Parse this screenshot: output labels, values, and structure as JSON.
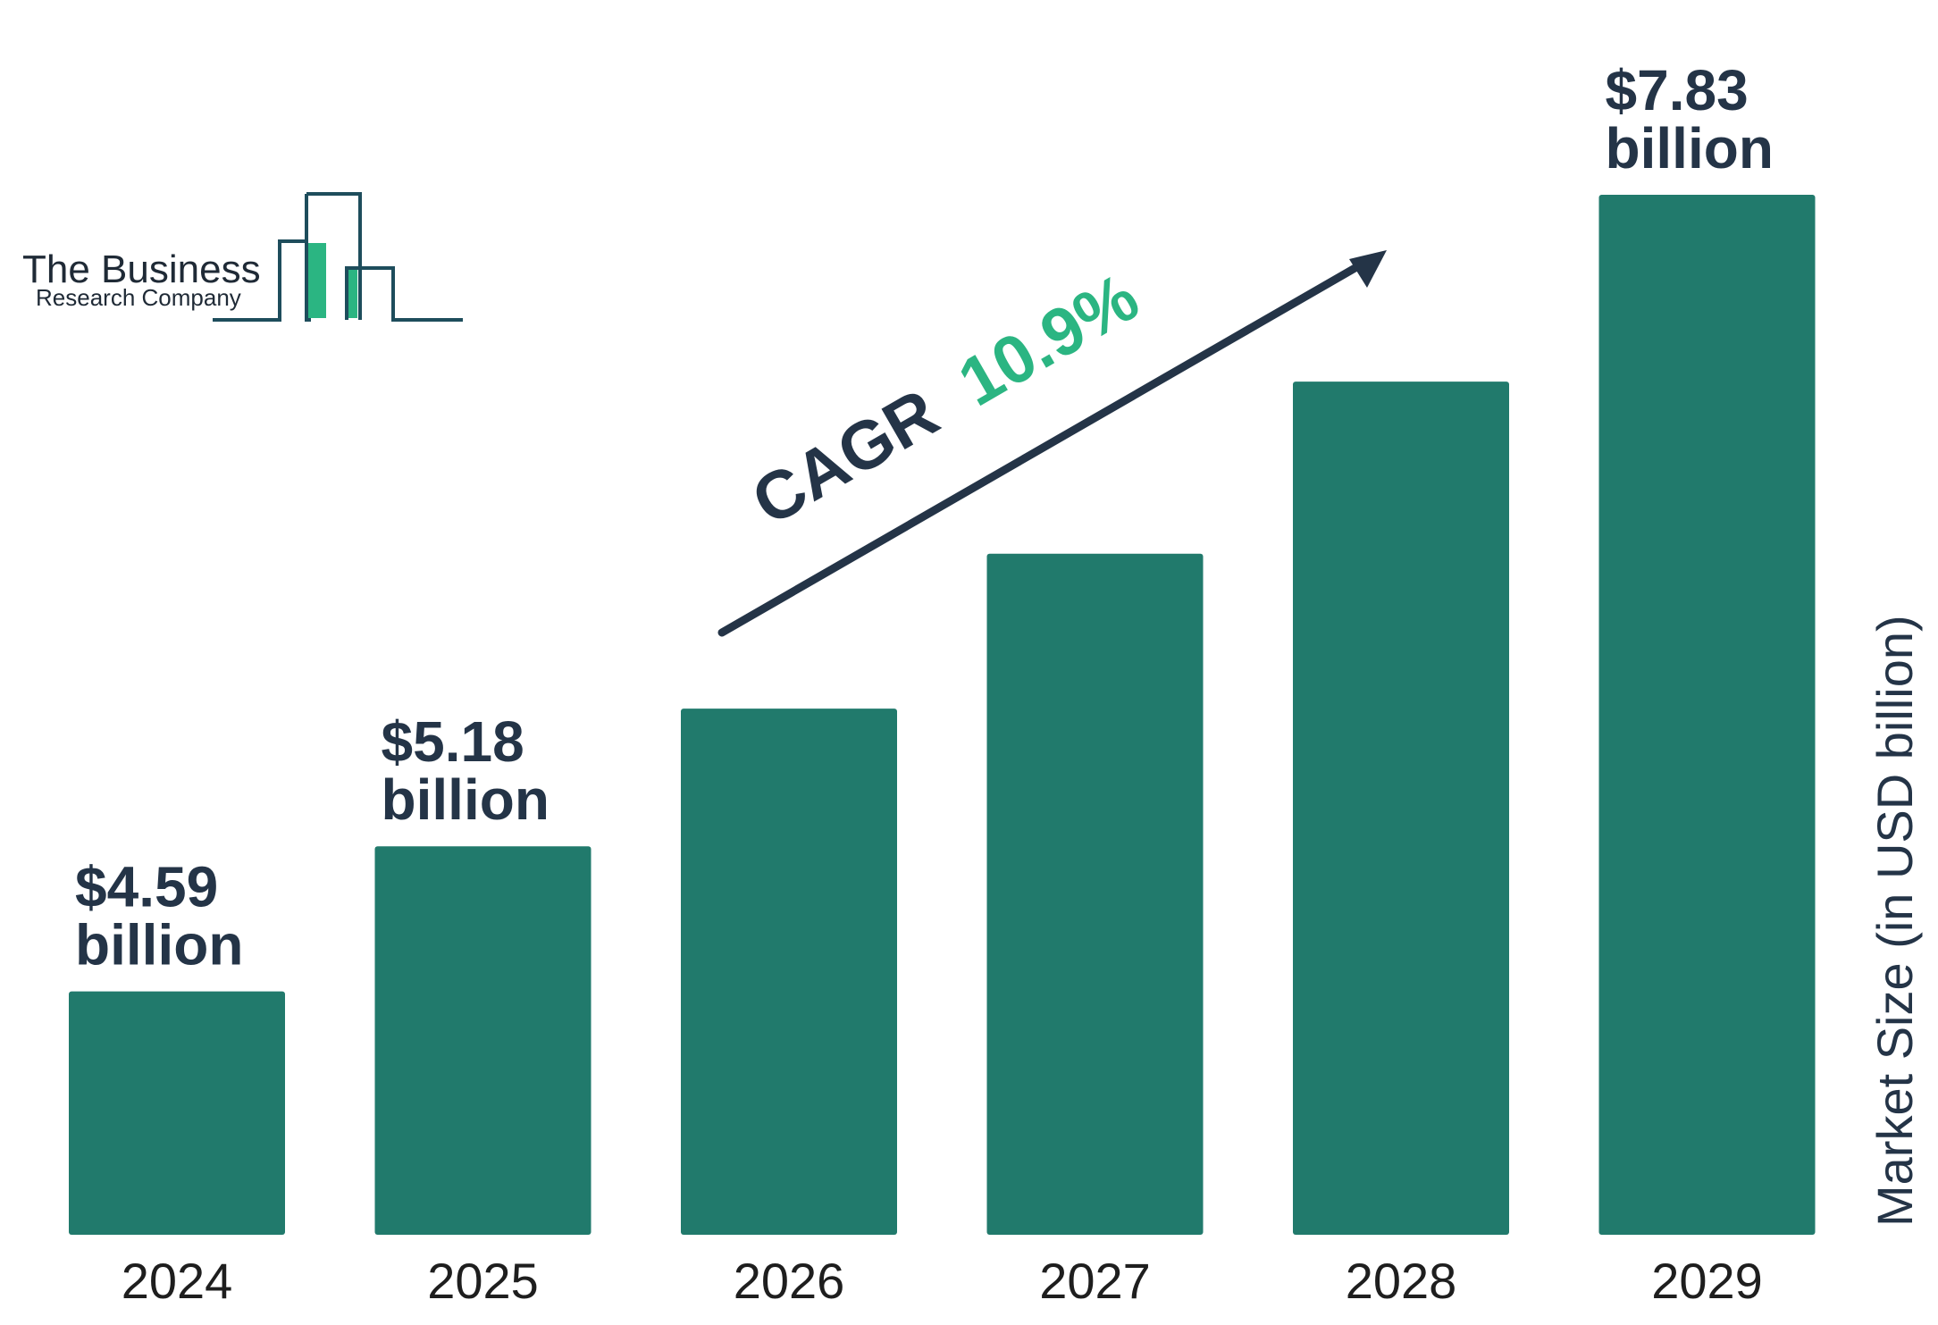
{
  "logo": {
    "line1": "The Business",
    "line2": "Research Company"
  },
  "colors": {
    "bar": "#217A6C",
    "label": "#243447",
    "accent": "#2BB582",
    "logo_outline": "#1E4D5C",
    "logo_fill": "#2BB582"
  },
  "cagr": {
    "label": "CAGR",
    "value": "10.9%"
  },
  "chart_data": {
    "type": "bar",
    "categories": [
      "2024",
      "2025",
      "2026",
      "2027",
      "2028",
      "2029"
    ],
    "values": [
      4.59,
      5.18,
      5.74,
      6.37,
      7.07,
      7.83
    ],
    "value_labels": [
      {
        "amount": "$4.59",
        "unit": "billion"
      },
      {
        "amount": "$5.18",
        "unit": "billion"
      },
      null,
      null,
      null,
      {
        "amount": "$7.83",
        "unit": "billion"
      }
    ],
    "ylabel": "Market Size (in USD billion)",
    "xlabel": "",
    "title": "",
    "ylim": [
      3.6,
      7.83
    ],
    "grid": false,
    "legend": "none"
  }
}
